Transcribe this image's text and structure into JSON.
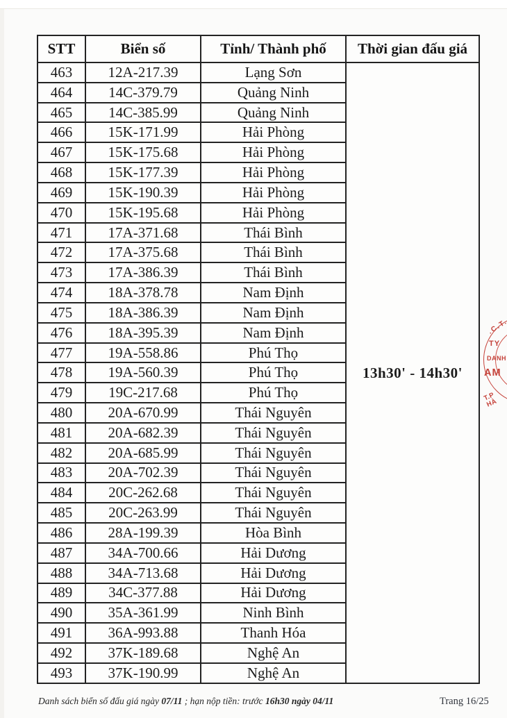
{
  "table": {
    "headers": [
      "STT",
      "Biển số",
      "Tỉnh/ Thành phố",
      "Thời gian đấu giá"
    ],
    "rows": [
      {
        "stt": "463",
        "plate": "12A-217.39",
        "province": "Lạng Sơn"
      },
      {
        "stt": "464",
        "plate": "14C-379.79",
        "province": "Quảng Ninh"
      },
      {
        "stt": "465",
        "plate": "14C-385.99",
        "province": "Quảng Ninh"
      },
      {
        "stt": "466",
        "plate": "15K-171.99",
        "province": "Hải Phòng"
      },
      {
        "stt": "467",
        "plate": "15K-175.68",
        "province": "Hải Phòng"
      },
      {
        "stt": "468",
        "plate": "15K-177.39",
        "province": "Hải Phòng"
      },
      {
        "stt": "469",
        "plate": "15K-190.39",
        "province": "Hải Phòng"
      },
      {
        "stt": "470",
        "plate": "15K-195.68",
        "province": "Hải Phòng"
      },
      {
        "stt": "471",
        "plate": "17A-371.68",
        "province": "Thái Bình"
      },
      {
        "stt": "472",
        "plate": "17A-375.68",
        "province": "Thái Bình"
      },
      {
        "stt": "473",
        "plate": "17A-386.39",
        "province": "Thái Bình"
      },
      {
        "stt": "474",
        "plate": "18A-378.78",
        "province": "Nam Định"
      },
      {
        "stt": "475",
        "plate": "18A-386.39",
        "province": "Nam Định"
      },
      {
        "stt": "476",
        "plate": "18A-395.39",
        "province": "Nam Định"
      },
      {
        "stt": "477",
        "plate": "19A-558.86",
        "province": "Phú Thọ"
      },
      {
        "stt": "478",
        "plate": "19A-560.39",
        "province": "Phú Thọ"
      },
      {
        "stt": "479",
        "plate": "19C-217.68",
        "province": "Phú Thọ"
      },
      {
        "stt": "480",
        "plate": "20A-670.99",
        "province": "Thái Nguyên"
      },
      {
        "stt": "481",
        "plate": "20A-682.39",
        "province": "Thái Nguyên"
      },
      {
        "stt": "482",
        "plate": "20A-685.99",
        "province": "Thái Nguyên"
      },
      {
        "stt": "483",
        "plate": "20A-702.39",
        "province": "Thái Nguyên"
      },
      {
        "stt": "484",
        "plate": "20C-262.68",
        "province": "Thái Nguyên"
      },
      {
        "stt": "485",
        "plate": "20C-263.99",
        "province": "Thái Nguyên"
      },
      {
        "stt": "486",
        "plate": "28A-199.39",
        "province": "Hòa Bình"
      },
      {
        "stt": "487",
        "plate": "34A-700.66",
        "province": "Hải Dương"
      },
      {
        "stt": "488",
        "plate": "34A-713.68",
        "province": "Hải Dương"
      },
      {
        "stt": "489",
        "plate": "34C-377.88",
        "province": "Hải Dương"
      },
      {
        "stt": "490",
        "plate": "35A-361.99",
        "province": "Ninh Bình"
      },
      {
        "stt": "491",
        "plate": "36A-993.88",
        "province": "Thanh Hóa"
      },
      {
        "stt": "492",
        "plate": "37K-189.68",
        "province": "Nghệ An"
      },
      {
        "stt": "493",
        "plate": "37K-190.99",
        "province": "Nghệ An"
      }
    ],
    "auction_time": "13h30' - 14h30'"
  },
  "stamp": {
    "color": "#c5423a",
    "arc_top": ".C.T.",
    "line1": "TY",
    "line2": "DANH",
    "line3": "AM",
    "arc_bottom": "T.P HÀ"
  },
  "footer": {
    "note_prefix": "Danh sách biển số đấu giá ngày ",
    "note_bold1": "07/11",
    "note_mid": " ; hạn nộp tiền: trước ",
    "note_bold2": "16h30 ngày 04/11",
    "page": "Trang 16/25"
  }
}
